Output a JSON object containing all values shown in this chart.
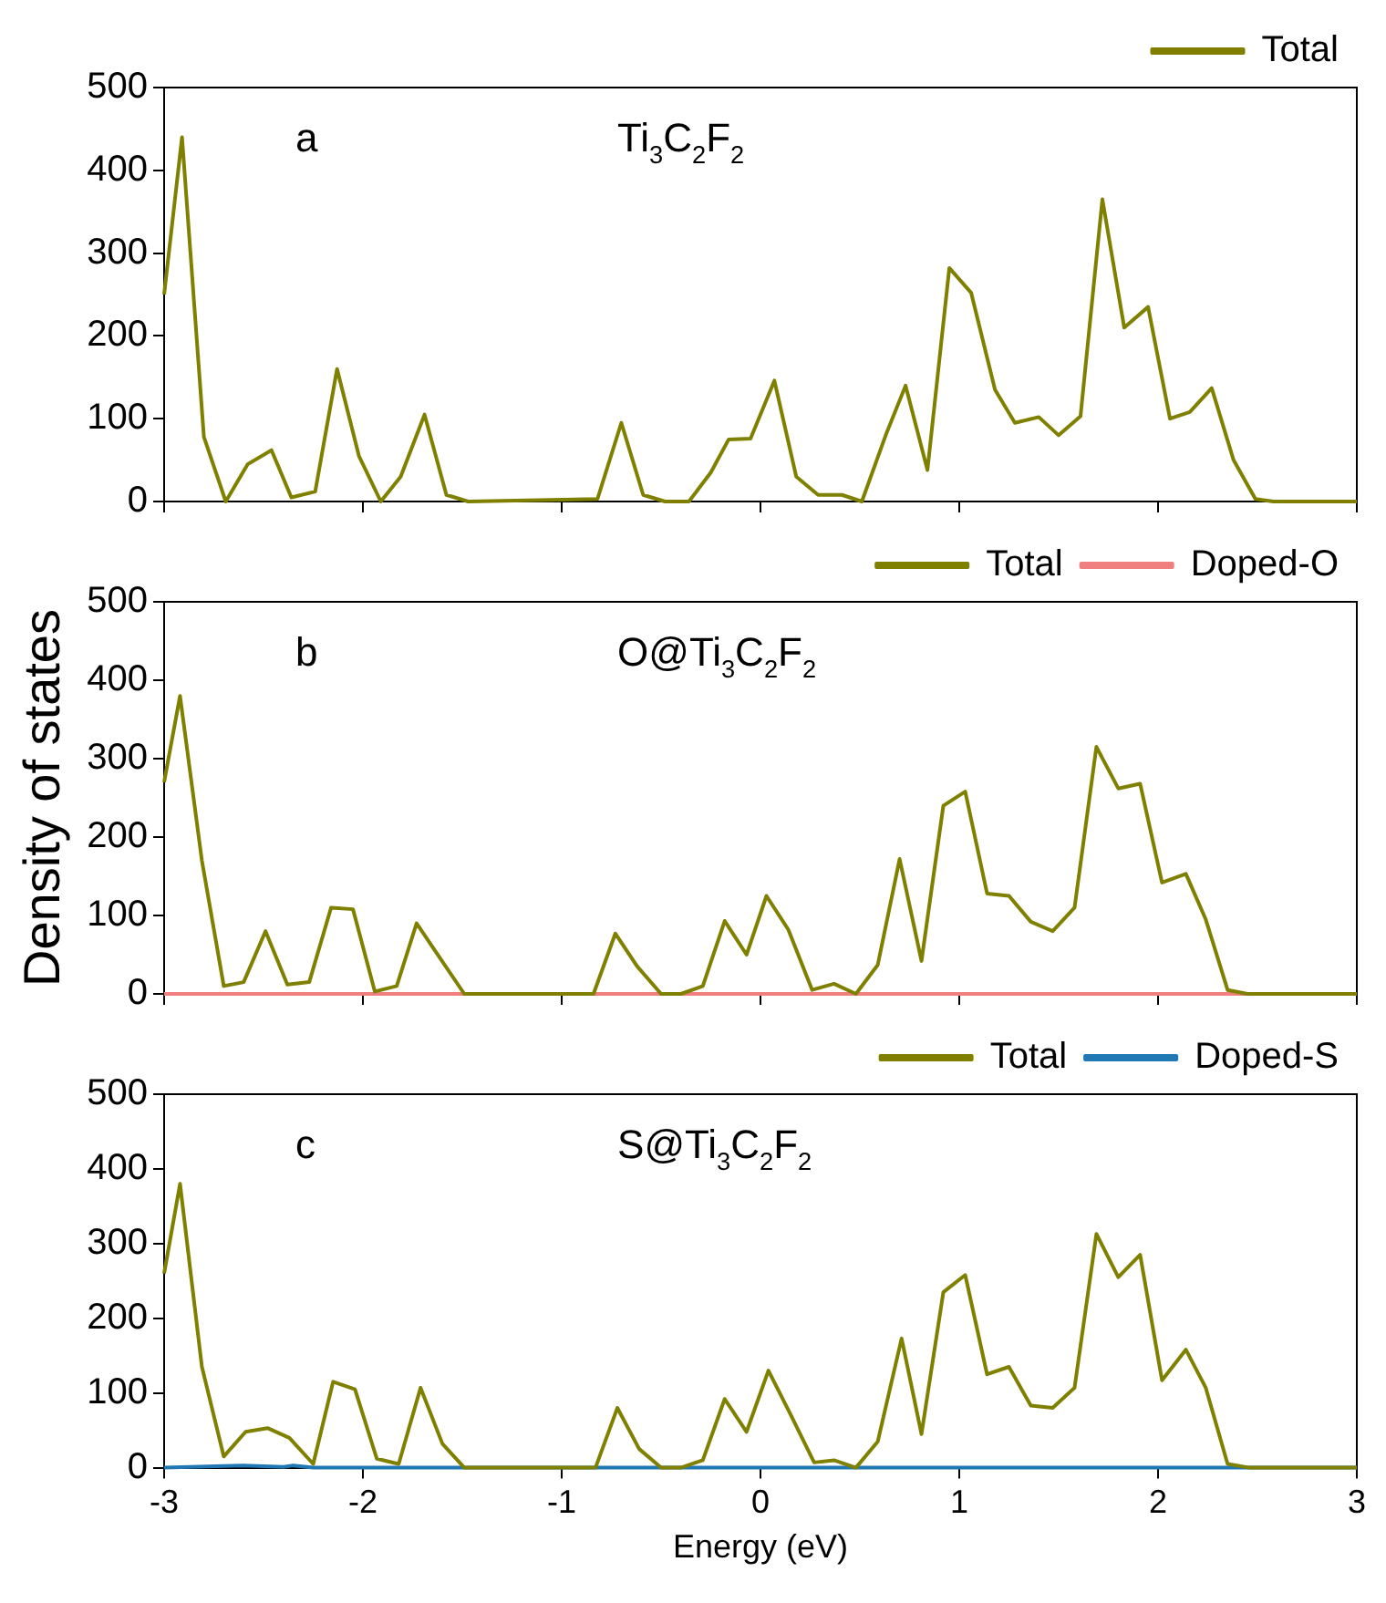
{
  "chart_data": [
    {
      "type": "line",
      "annotations": [
        "a",
        "Ti$_{3}$C$_{2}$F$_{2}$"
      ],
      "legend": "top right",
      "grid": false,
      "tick_labels": "y",
      "xlim": [
        -3,
        3
      ],
      "xticks": [
        -3,
        -2,
        -1,
        0,
        1,
        2,
        3
      ],
      "ylim": [
        0,
        500
      ],
      "yticks": [
        0,
        100,
        200,
        300,
        400,
        500
      ],
      "series": [
        {
          "name": "Total",
          "color": "#808000",
          "x": [
            -3.0,
            -2.91,
            -2.8,
            -2.69,
            -2.58,
            -2.46,
            -2.36,
            -2.24,
            -2.13,
            -2.02,
            -1.91,
            -1.81,
            -1.69,
            -1.58,
            -1.47,
            -0.82,
            -0.7,
            -0.59,
            -0.48,
            -0.36,
            -0.25,
            -0.16,
            -0.05,
            0.07,
            0.18,
            0.29,
            0.41,
            0.51,
            0.63,
            0.73,
            0.84,
            0.95,
            1.06,
            1.18,
            1.28,
            1.4,
            1.5,
            1.61,
            1.72,
            1.83,
            1.95,
            2.06,
            2.16,
            2.27,
            2.38,
            2.49,
            2.58,
            3.0
          ],
          "values": [
            250,
            440,
            78,
            0,
            45,
            62,
            5,
            12,
            160,
            55,
            0,
            30,
            105,
            8,
            0,
            3,
            95,
            8,
            0,
            0,
            35,
            75,
            76,
            146,
            30,
            8,
            8,
            0,
            80,
            140,
            38,
            282,
            252,
            135,
            95,
            102,
            80,
            103,
            365,
            210,
            235,
            100,
            108,
            137,
            50,
            3,
            0,
            0
          ]
        }
      ]
    },
    {
      "type": "line",
      "annotations": [
        "b",
        "O@Ti$_{3}$C$_{2}$F$_{2}$"
      ],
      "ylabel": "Density of states",
      "legend": "top right",
      "grid": false,
      "tick_labels": "y",
      "xlim": [
        -3,
        3
      ],
      "xticks": [
        -3,
        -2,
        -1,
        0,
        1,
        2,
        3
      ],
      "ylim": [
        0,
        500
      ],
      "yticks": [
        0,
        100,
        200,
        300,
        400,
        500
      ],
      "series": [
        {
          "name": "Total",
          "color": "#808000",
          "x": [
            -3.0,
            -2.92,
            -2.81,
            -2.7,
            -2.6,
            -2.49,
            -2.38,
            -2.27,
            -2.16,
            -2.05,
            -1.94,
            -1.83,
            -1.73,
            -1.61,
            -1.49,
            -0.84,
            -0.73,
            -0.62,
            -0.5,
            -0.4,
            -0.29,
            -0.18,
            -0.07,
            0.03,
            0.14,
            0.26,
            0.37,
            0.48,
            0.59,
            0.7,
            0.81,
            0.92,
            1.03,
            1.14,
            1.25,
            1.36,
            1.47,
            1.58,
            1.69,
            1.8,
            1.91,
            2.02,
            2.14,
            2.24,
            2.35,
            2.45,
            3.0
          ],
          "values": [
            270,
            380,
            170,
            10,
            15,
            80,
            12,
            15,
            110,
            108,
            3,
            10,
            90,
            45,
            0,
            0,
            77,
            35,
            0,
            0,
            10,
            93,
            50,
            125,
            82,
            5,
            13,
            0,
            37,
            172,
            42,
            240,
            258,
            128,
            125,
            92,
            80,
            110,
            315,
            262,
            268,
            142,
            153,
            95,
            5,
            0,
            0
          ]
        },
        {
          "name": "Doped-O",
          "color": "#f08080",
          "x": [
            -3,
            3
          ],
          "values": [
            0,
            0
          ]
        }
      ]
    },
    {
      "type": "line",
      "annotations": [
        "c",
        "S@Ti$_{3}$C$_{2}$F$_{2}$"
      ],
      "xlabel": "Energy (eV)",
      "legend": "top right",
      "grid": false,
      "xlim": [
        -3,
        3
      ],
      "xticks": [
        -3,
        -2,
        -1,
        0,
        1,
        2,
        3
      ],
      "ylim": [
        0,
        500
      ],
      "yticks": [
        0,
        100,
        200,
        300,
        400,
        500
      ],
      "series": [
        {
          "name": "Total",
          "color": "#808000",
          "x": [
            -3.0,
            -2.92,
            -2.81,
            -2.7,
            -2.59,
            -2.48,
            -2.37,
            -2.25,
            -2.15,
            -2.04,
            -1.93,
            -1.82,
            -1.71,
            -1.6,
            -1.49,
            -0.83,
            -0.72,
            -0.61,
            -0.5,
            -0.4,
            -0.29,
            -0.18,
            -0.07,
            0.04,
            0.15,
            0.27,
            0.37,
            0.48,
            0.59,
            0.71,
            0.81,
            0.92,
            1.03,
            1.14,
            1.25,
            1.36,
            1.47,
            1.58,
            1.69,
            1.8,
            1.91,
            2.02,
            2.14,
            2.24,
            2.35,
            2.46,
            3.0
          ],
          "values": [
            260,
            380,
            135,
            15,
            48,
            53,
            40,
            5,
            115,
            105,
            12,
            5,
            107,
            32,
            0,
            0,
            80,
            25,
            0,
            0,
            10,
            92,
            48,
            130,
            72,
            7,
            10,
            0,
            35,
            173,
            45,
            235,
            258,
            125,
            135,
            83,
            80,
            107,
            313,
            255,
            285,
            117,
            158,
            107,
            5,
            0,
            0
          ]
        },
        {
          "name": "Doped-S",
          "color": "#1f77b4",
          "x": [
            -3,
            -2.6,
            -2.5,
            -2.4,
            -2.35,
            -2.25,
            3
          ],
          "values": [
            0,
            3,
            2,
            1,
            3,
            0,
            0
          ]
        }
      ]
    }
  ]
}
